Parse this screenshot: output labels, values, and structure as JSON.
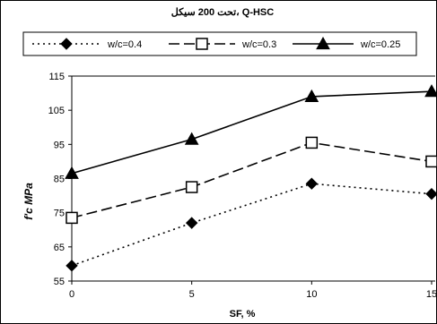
{
  "chart_data": {
    "type": "line",
    "title": "تحت 200 سيكل، Q-HSC",
    "xlabel": "SF, %",
    "ylabel": "f'c MPa",
    "x": [
      0,
      5,
      10,
      15
    ],
    "xticks": [
      "0",
      "5",
      "10",
      "15"
    ],
    "yticks": [
      "55",
      "65",
      "75",
      "85",
      "95",
      "105",
      "115"
    ],
    "xlim": [
      0,
      15
    ],
    "ylim": [
      55,
      115
    ],
    "grid": false,
    "legend_position": "top",
    "series": [
      {
        "name": "w/c=0.4",
        "values": [
          59.5,
          72,
          83.5,
          80.5
        ],
        "line": "dotted",
        "marker": "diamond",
        "color": "#000000"
      },
      {
        "name": "w/c=0.3",
        "values": [
          73.5,
          82.5,
          95.5,
          90
        ],
        "line": "dashed",
        "marker": "open-square",
        "color": "#000000"
      },
      {
        "name": "w/c=0.25",
        "values": [
          86.5,
          96.5,
          109,
          110.5
        ],
        "line": "solid",
        "marker": "triangle",
        "color": "#000000"
      }
    ]
  }
}
